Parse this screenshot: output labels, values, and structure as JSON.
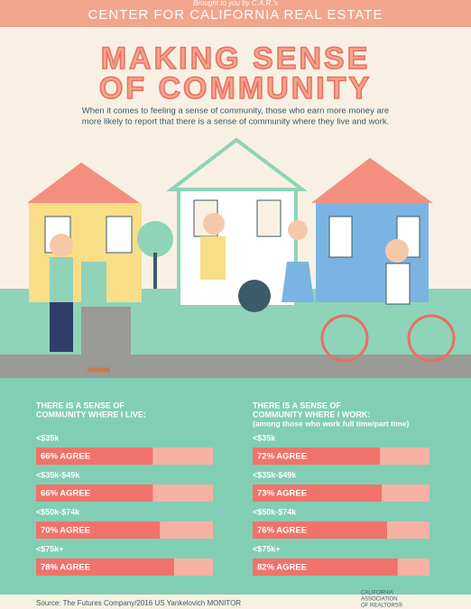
{
  "header": {
    "top_text": "Brought to you by C.A.R.'s",
    "title": "CENTER FOR CALIFORNIA REAL ESTATE"
  },
  "title": [
    "MAKING SENSE",
    "OF COMMUNITY"
  ],
  "intro": [
    "When it comes to feeling a sense of community, those who earn more money are",
    "more likely to report that there is a sense of community where they live and work."
  ],
  "charts": [
    {
      "title": [
        "THERE IS A SENSE OF",
        "COMMUNITY WHERE I LIVE:"
      ],
      "categories": [
        "<$35k",
        "<$35k-$49k",
        "<$50k-$74k",
        "<$75k+"
      ],
      "values": [
        66,
        66,
        70,
        78
      ],
      "value_labels": [
        "66% AGREE",
        "66% AGREE",
        "70% AGREE",
        "78% AGREE"
      ],
      "xlim": [
        0,
        100
      ],
      "color": "#f0736b",
      "track_color": "#f6b2a3"
    },
    {
      "title": [
        "THERE IS A SENSE OF",
        "COMMUNITY WHERE I WORK:"
      ],
      "subtitle": "(among those who work full time/part time)",
      "categories": [
        "<$35k",
        "<$35k-$49k",
        "<$50k-$74k",
        "<$75k+"
      ],
      "values": [
        72,
        73,
        76,
        82
      ],
      "value_labels": [
        "72% AGREE",
        "73% AGREE",
        "76% AGREE",
        "82% AGREE"
      ],
      "xlim": [
        0,
        100
      ],
      "color": "#f0736b",
      "track_color": "#f6b2a3"
    }
  ],
  "footer": {
    "source": "Source: The Futures Company/2016 US Yankelovich MONITOR",
    "logo": [
      "CALIFORNIA",
      "ASSOCIATION",
      "OF REALTORS®"
    ]
  }
}
